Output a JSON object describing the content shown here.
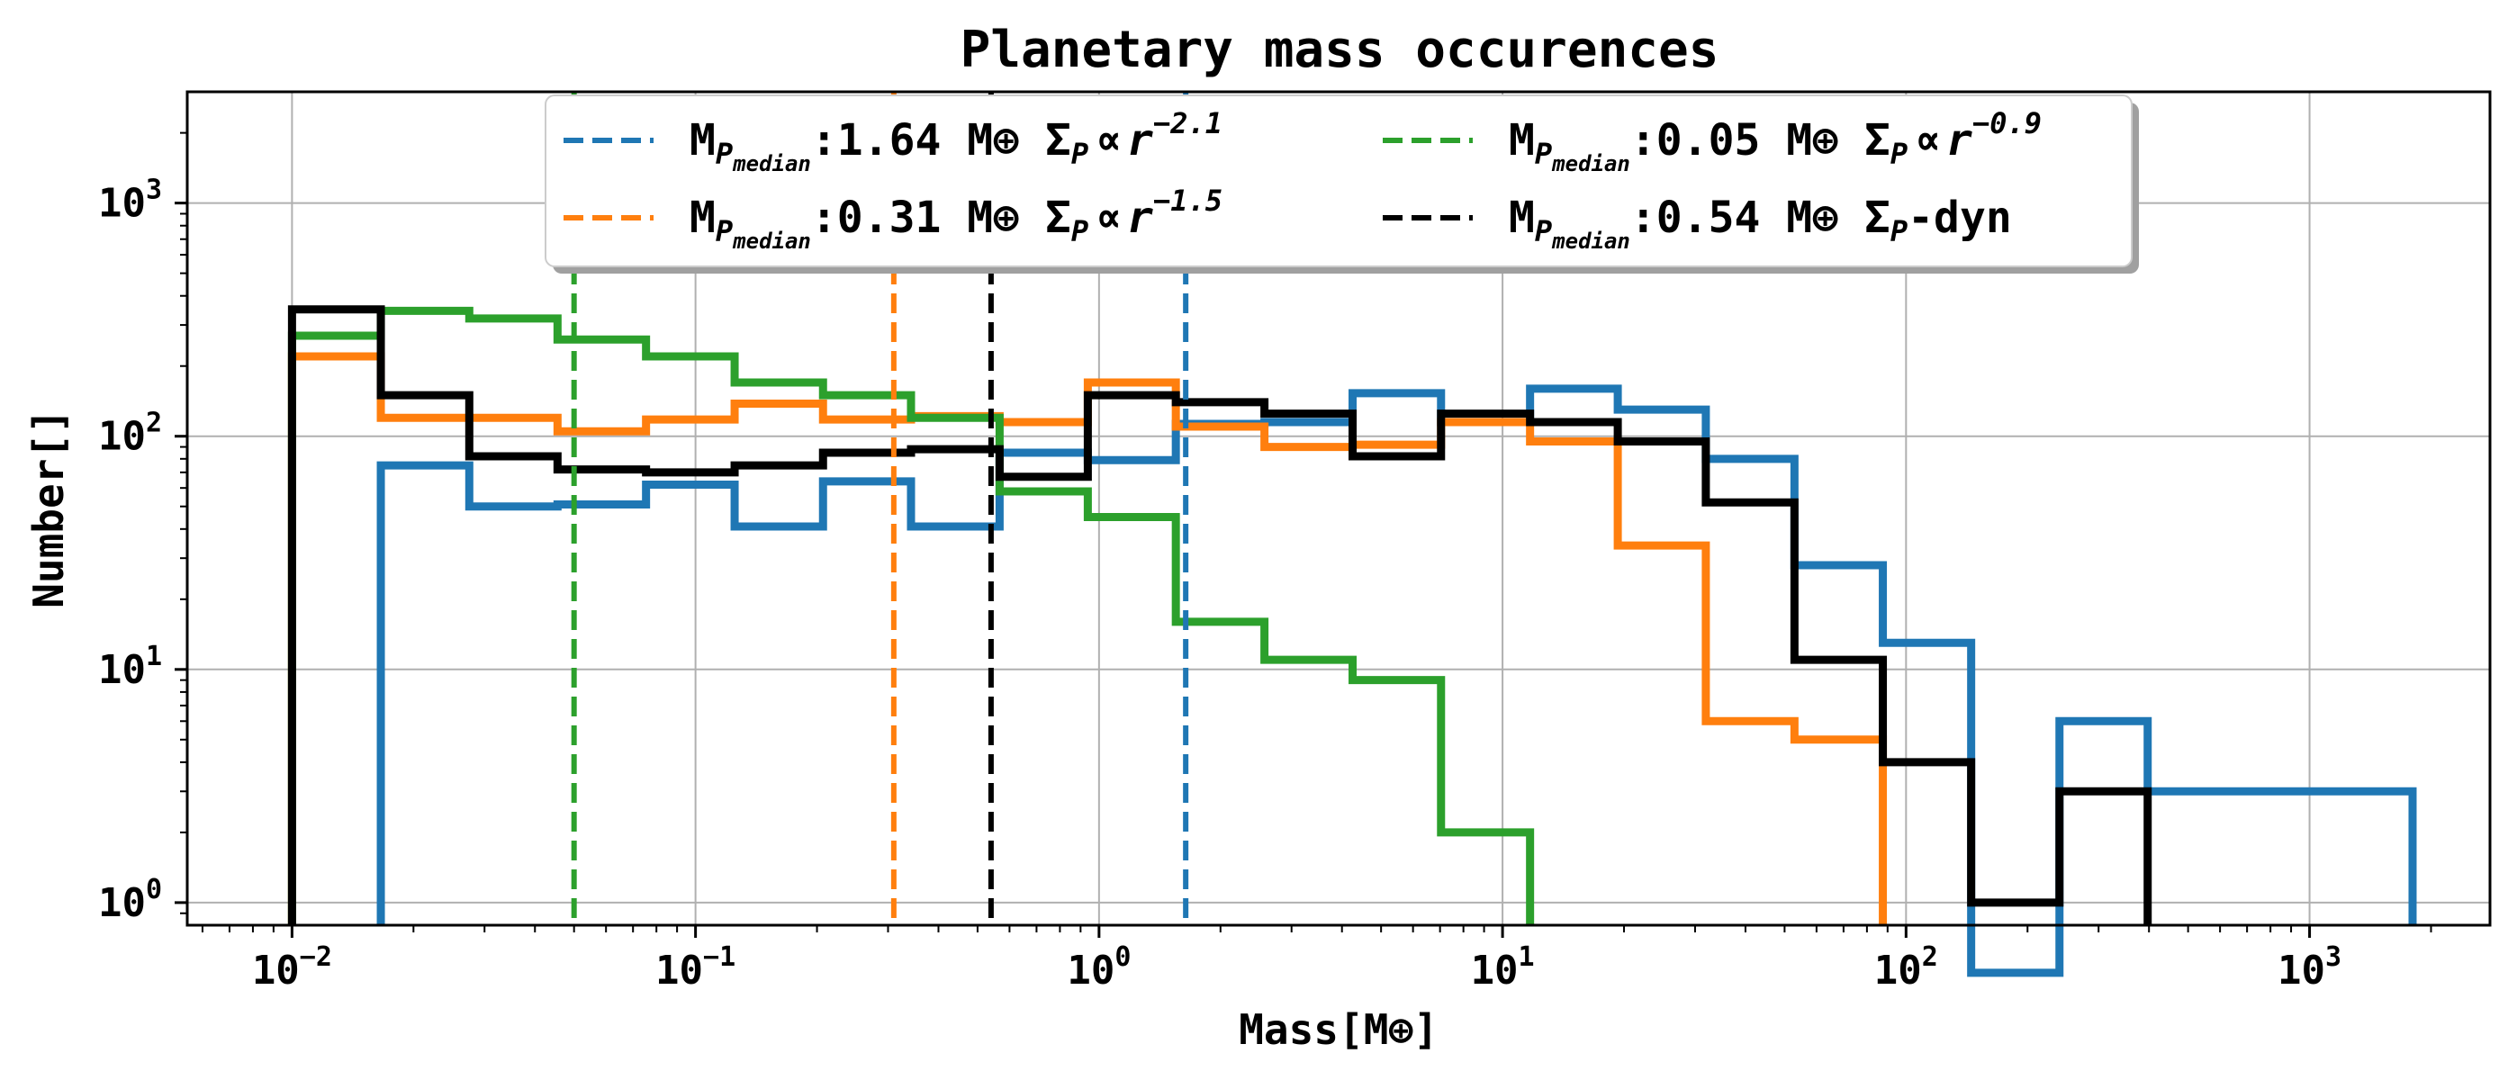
{
  "chart_data": {
    "type": "step-histogram",
    "title": "Planetary mass occurences",
    "xlabel": "Mass[M⊕]",
    "ylabel": "Number[]",
    "xscale": "log",
    "yscale": "log",
    "xlim": [
      0.0055,
      2800
    ],
    "ylim": [
      0.8,
      3000
    ],
    "xticks": [
      {
        "base": "10",
        "exp": "−2",
        "value": 0.01
      },
      {
        "base": "10",
        "exp": "−1",
        "value": 0.1
      },
      {
        "base": "10",
        "exp": "0",
        "value": 1
      },
      {
        "base": "10",
        "exp": "1",
        "value": 10
      },
      {
        "base": "10",
        "exp": "2",
        "value": 100
      },
      {
        "base": "10",
        "exp": "3",
        "value": 1000
      }
    ],
    "yticks": [
      {
        "base": "10",
        "exp": "0",
        "value": 1
      },
      {
        "base": "10",
        "exp": "1",
        "value": 10
      },
      {
        "base": "10",
        "exp": "2",
        "value": 100
      },
      {
        "base": "10",
        "exp": "3",
        "value": 1000
      }
    ],
    "grid": true,
    "legend_location": "upper center",
    "series": [
      {
        "name": "blue",
        "color": "#1f77b4",
        "edges": [
          0.0166,
          0.0275,
          0.0455,
          0.0754,
          0.125,
          0.207,
          0.342,
          0.567,
          0.938,
          1.55,
          2.57,
          4.25,
          7.04,
          11.7,
          19.3,
          31.9,
          52.9,
          87.6,
          145,
          240,
          397,
          657,
          1090,
          1800
        ],
        "counts": [
          75,
          50,
          51,
          62,
          41,
          64,
          41,
          85,
          79,
          113,
          115,
          153,
          115,
          160,
          130,
          80,
          28,
          13,
          0.5,
          6,
          3,
          3,
          3
        ],
        "median": 1.64,
        "median_label": "1.64",
        "slope_exp": "−2.1"
      },
      {
        "name": "orange",
        "color": "#ff7f0e",
        "edges": [
          0.01,
          0.0166,
          0.0275,
          0.0455,
          0.0754,
          0.125,
          0.207,
          0.342,
          0.567,
          0.938,
          1.55,
          2.57,
          4.25,
          7.04,
          11.7,
          19.3,
          31.9,
          52.9,
          87.6
        ],
        "counts": [
          220,
          120,
          120,
          105,
          118,
          138,
          118,
          122,
          115,
          170,
          110,
          90,
          92,
          115,
          95,
          34,
          6,
          5
        ],
        "median": 0.31,
        "median_label": "0.31",
        "slope_exp": "−1.5"
      },
      {
        "name": "green",
        "color": "#2ca02c",
        "edges": [
          0.01,
          0.0166,
          0.0275,
          0.0455,
          0.0754,
          0.125,
          0.207,
          0.342,
          0.567,
          0.938,
          1.55,
          2.57,
          4.25,
          7.04,
          11.7
        ],
        "counts": [
          270,
          345,
          320,
          260,
          220,
          170,
          150,
          120,
          58,
          45,
          16,
          11,
          9,
          2
        ],
        "median": 0.05,
        "median_label": "0.05",
        "slope_exp": "−0.9"
      },
      {
        "name": "black",
        "color": "#000000",
        "edges": [
          0.01,
          0.0166,
          0.0275,
          0.0455,
          0.0754,
          0.125,
          0.207,
          0.342,
          0.567,
          0.938,
          1.55,
          2.57,
          4.25,
          7.04,
          11.7,
          19.3,
          31.9,
          52.9,
          87.6,
          145,
          240,
          397
        ],
        "counts": [
          350,
          150,
          82,
          72,
          70,
          75,
          85,
          88,
          67,
          150,
          140,
          125,
          82,
          125,
          115,
          95,
          52,
          11,
          4,
          1,
          3
        ],
        "median": 0.54,
        "median_label": "0.54",
        "slope_exp": ""
      }
    ],
    "legend": [
      {
        "series": 0,
        "prefix": "M",
        "sub": "P",
        "subsub": "median",
        "value": "1.64",
        "unit": "M⊕",
        "sigma": "Σ",
        "sigma_sub": "P",
        "relation": "∝",
        "r": "r",
        "exp": "−2.1",
        "suffix": ""
      },
      {
        "series": 1,
        "prefix": "M",
        "sub": "P",
        "subsub": "median",
        "value": "0.31",
        "unit": "M⊕",
        "sigma": "Σ",
        "sigma_sub": "P",
        "relation": "∝",
        "r": "r",
        "exp": "−1.5",
        "suffix": ""
      },
      {
        "series": 2,
        "prefix": "M",
        "sub": "P",
        "subsub": "median",
        "value": "0.05",
        "unit": "M⊕",
        "sigma": "Σ",
        "sigma_sub": "P",
        "relation": "∝",
        "r": "r",
        "exp": "−0.9",
        "suffix": ""
      },
      {
        "series": 3,
        "prefix": "M",
        "sub": "P",
        "subsub": "median",
        "value": "0.54",
        "unit": "M⊕",
        "sigma": "Σ",
        "sigma_sub": "P",
        "relation": "",
        "r": "",
        "exp": "",
        "suffix": "-dyn"
      }
    ]
  }
}
